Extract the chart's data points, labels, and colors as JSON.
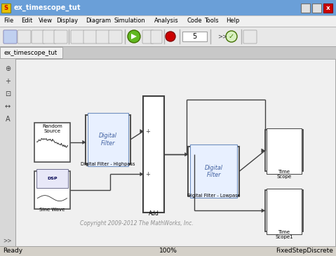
{
  "title": "ex_timescope_tut",
  "menubar_items": [
    "File",
    "Edit",
    "View",
    "Display",
    "Diagram",
    "Simulation",
    "Analysis",
    "Code",
    "Tools",
    "Help"
  ],
  "tab_label": "ex_timescope_tut",
  "status_left": "Ready",
  "status_center": "100%",
  "status_right": "FixedStepDiscrete",
  "copyright_text": "Copyright 2009-2012 The MathWorks, Inc.",
  "title_bar_color": "#6a9fd8",
  "title_text_color": "#ffffff",
  "menu_bg": "#f0f0f0",
  "toolbar_bg": "#e8e8e8",
  "canvas_bg": "#f0f0f0",
  "side_bg": "#d8d8d8",
  "win_bg": "#cccccc",
  "status_bg": "#d4d0c8",
  "close_btn_color": "#cc0000",
  "block_edge": "#505050",
  "filter_fill": "#ffffff",
  "filter_inner_edge": "#7090c0",
  "filter_inner_fill": "#e8f0ff",
  "filter_text_color": "#4060a0",
  "scope_fill": "#ffffff",
  "wire_color": "#404040",
  "arrow_color": "#404040"
}
